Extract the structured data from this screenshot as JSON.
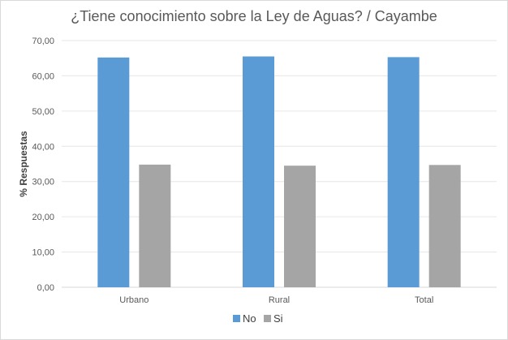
{
  "chart_data": {
    "type": "bar",
    "title": "¿Tiene conocimiento sobre la Ley de Aguas? / Cayambe",
    "xlabel": "",
    "ylabel": "% Respuestas",
    "ylim": [
      0,
      70
    ],
    "yticks": [
      "0,00",
      "10,00",
      "20,00",
      "30,00",
      "40,00",
      "50,00",
      "60,00",
      "70,00"
    ],
    "categories": [
      "Urbano",
      "Rural",
      "Total"
    ],
    "series": [
      {
        "name": "No",
        "color": "#5b9bd5",
        "values": [
          65.2,
          65.5,
          65.3
        ]
      },
      {
        "name": "Si",
        "color": "#a5a5a5",
        "values": [
          34.8,
          34.5,
          34.7
        ]
      }
    ],
    "grid": true,
    "legend_position": "bottom"
  }
}
